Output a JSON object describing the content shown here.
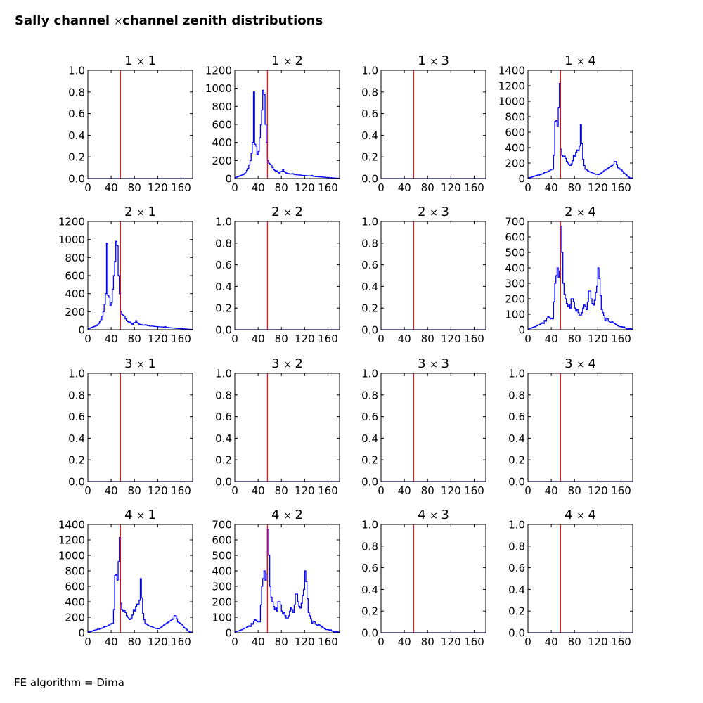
{
  "title": {
    "left": "Sally channel",
    "times": "×",
    "right": "channel zenith distributions"
  },
  "footer": "FE algorithm = Dima",
  "colors": {
    "hist": "#0000ff",
    "cut": "#ff0000"
  },
  "chart_data": {
    "type": "line",
    "subtype": "step-histogram grid 4x4",
    "xlim": [
      0,
      180
    ],
    "xticks": [
      0,
      40,
      80,
      120,
      160
    ],
    "cut_line_x": 56,
    "bin_width": 2,
    "series_shapes": {
      "A": [
        10,
        15,
        20,
        25,
        30,
        35,
        40,
        45,
        55,
        70,
        90,
        110,
        150,
        200,
        280,
        400,
        960,
        380,
        360,
        270,
        300,
        450,
        600,
        760,
        980,
        930,
        600,
        400,
        200,
        170,
        160,
        150,
        120,
        100,
        90,
        80,
        85,
        70,
        60,
        75,
        80,
        100,
        80,
        70,
        60,
        55,
        55,
        50,
        50,
        55,
        50,
        45,
        45,
        40,
        40,
        40,
        38,
        36,
        35,
        35,
        33,
        32,
        30,
        30,
        30,
        28,
        35,
        25,
        25,
        22,
        22,
        20,
        20,
        18,
        18,
        16,
        15,
        14,
        12,
        12,
        12,
        10,
        10,
        8,
        8,
        6,
        5,
        5,
        4,
        3
      ],
      "B": [
        10,
        12,
        15,
        20,
        25,
        30,
        35,
        40,
        45,
        45,
        50,
        55,
        60,
        70,
        80,
        80,
        85,
        90,
        100,
        110,
        120,
        120,
        300,
        740,
        750,
        680,
        920,
        1230,
        380,
        300,
        280,
        290,
        260,
        220,
        200,
        180,
        170,
        190,
        230,
        300,
        280,
        340,
        370,
        360,
        420,
        700,
        450,
        250,
        170,
        120,
        110,
        100,
        90,
        85,
        80,
        75,
        65,
        60,
        55,
        55,
        50,
        55,
        65,
        75,
        90,
        100,
        110,
        120,
        130,
        140,
        150,
        160,
        170,
        180,
        220,
        220,
        180,
        140,
        130,
        120,
        110,
        90,
        70,
        60,
        50,
        35,
        20,
        10,
        8,
        5
      ],
      "C": [
        5,
        8,
        10,
        12,
        15,
        18,
        20,
        25,
        30,
        30,
        35,
        40,
        45,
        40,
        60,
        55,
        75,
        85,
        80,
        70,
        75,
        70,
        180,
        300,
        350,
        400,
        340,
        380,
        670,
        500,
        300,
        230,
        200,
        170,
        150,
        160,
        140,
        200,
        200,
        180,
        140,
        120,
        130,
        110,
        95,
        95,
        110,
        140,
        160,
        150,
        130,
        180,
        250,
        250,
        200,
        170,
        160,
        190,
        240,
        280,
        400,
        330,
        220,
        130,
        110,
        90,
        60,
        75,
        70,
        55,
        50,
        45,
        55,
        45,
        40,
        35,
        30,
        25,
        20,
        20,
        20,
        15,
        18,
        12,
        8,
        5,
        5,
        8,
        6,
        3
      ]
    },
    "subplots": [
      {
        "title_row": "1",
        "title_col": "1",
        "series": null,
        "ylim": [
          0,
          1.0
        ],
        "yticks": [
          "0.0",
          "0.2",
          "0.4",
          "0.6",
          "0.8",
          "1.0"
        ]
      },
      {
        "title_row": "1",
        "title_col": "2",
        "series": "A",
        "ylim": [
          0,
          1200
        ],
        "yticks": [
          "0",
          "200",
          "400",
          "600",
          "800",
          "1000",
          "1200"
        ]
      },
      {
        "title_row": "1",
        "title_col": "3",
        "series": null,
        "ylim": [
          0,
          1.0
        ],
        "yticks": [
          "0.0",
          "0.2",
          "0.4",
          "0.6",
          "0.8",
          "1.0"
        ]
      },
      {
        "title_row": "1",
        "title_col": "4",
        "series": "B",
        "ylim": [
          0,
          1400
        ],
        "yticks": [
          "0",
          "200",
          "400",
          "600",
          "800",
          "1000",
          "1200",
          "1400"
        ]
      },
      {
        "title_row": "2",
        "title_col": "1",
        "series": "A",
        "ylim": [
          0,
          1200
        ],
        "yticks": [
          "0",
          "200",
          "400",
          "600",
          "800",
          "1000",
          "1200"
        ]
      },
      {
        "title_row": "2",
        "title_col": "2",
        "series": null,
        "ylim": [
          0,
          1.0
        ],
        "yticks": [
          "0.0",
          "0.2",
          "0.4",
          "0.6",
          "0.8",
          "1.0"
        ]
      },
      {
        "title_row": "2",
        "title_col": "3",
        "series": null,
        "ylim": [
          0,
          1.0
        ],
        "yticks": [
          "0.0",
          "0.2",
          "0.4",
          "0.6",
          "0.8",
          "1.0"
        ]
      },
      {
        "title_row": "2",
        "title_col": "4",
        "series": "C",
        "ylim": [
          0,
          700
        ],
        "yticks": [
          "0",
          "100",
          "200",
          "300",
          "400",
          "500",
          "600",
          "700"
        ]
      },
      {
        "title_row": "3",
        "title_col": "1",
        "series": null,
        "ylim": [
          0,
          1.0
        ],
        "yticks": [
          "0.0",
          "0.2",
          "0.4",
          "0.6",
          "0.8",
          "1.0"
        ]
      },
      {
        "title_row": "3",
        "title_col": "2",
        "series": null,
        "ylim": [
          0,
          1.0
        ],
        "yticks": [
          "0.0",
          "0.2",
          "0.4",
          "0.6",
          "0.8",
          "1.0"
        ]
      },
      {
        "title_row": "3",
        "title_col": "3",
        "series": null,
        "ylim": [
          0,
          1.0
        ],
        "yticks": [
          "0.0",
          "0.2",
          "0.4",
          "0.6",
          "0.8",
          "1.0"
        ]
      },
      {
        "title_row": "3",
        "title_col": "4",
        "series": null,
        "ylim": [
          0,
          1.0
        ],
        "yticks": [
          "0.0",
          "0.2",
          "0.4",
          "0.6",
          "0.8",
          "1.0"
        ]
      },
      {
        "title_row": "4",
        "title_col": "1",
        "series": "B",
        "ylim": [
          0,
          1400
        ],
        "yticks": [
          "0",
          "200",
          "400",
          "600",
          "800",
          "1000",
          "1200",
          "1400"
        ]
      },
      {
        "title_row": "4",
        "title_col": "2",
        "series": "C",
        "ylim": [
          0,
          700
        ],
        "yticks": [
          "0",
          "100",
          "200",
          "300",
          "400",
          "500",
          "600",
          "700"
        ]
      },
      {
        "title_row": "4",
        "title_col": "3",
        "series": null,
        "ylim": [
          0,
          1.0
        ],
        "yticks": [
          "0.0",
          "0.2",
          "0.4",
          "0.6",
          "0.8",
          "1.0"
        ]
      },
      {
        "title_row": "4",
        "title_col": "4",
        "series": null,
        "ylim": [
          0,
          1.0
        ],
        "yticks": [
          "0.0",
          "0.2",
          "0.4",
          "0.6",
          "0.8",
          "1.0"
        ]
      }
    ]
  }
}
